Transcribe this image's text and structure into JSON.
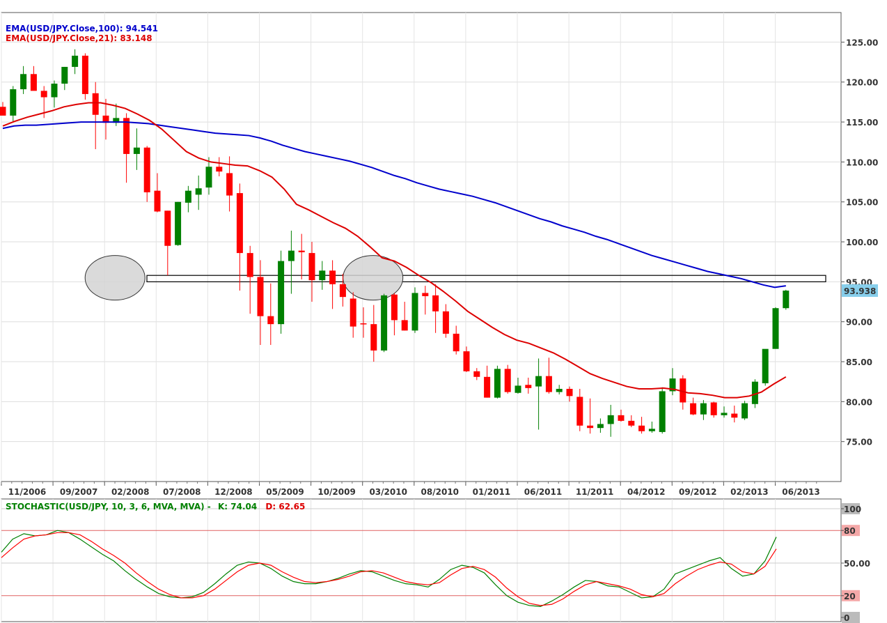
{
  "chart_data": [
    {
      "type": "candlestick",
      "instrument": "USD/JPY",
      "interval": "monthly",
      "ema_labels": [
        {
          "text": "EMA(USD/JPY.Close,100): 94.541",
          "color": "#0000cc"
        },
        {
          "text": "EMA(USD/JPY.Close,21): 83.148",
          "color": "#dd0000"
        }
      ],
      "last_price_label": "93.938",
      "x_tick_labels": [
        "11/2006",
        "09/2007",
        "02/2008",
        "07/2008",
        "12/2008",
        "05/2009",
        "10/2009",
        "03/2010",
        "08/2010",
        "01/2011",
        "06/2011",
        "11/2011",
        "04/2012",
        "09/2012",
        "02/2013",
        "06/2013"
      ],
      "y_tick_labels": [
        "125.00",
        "120.00",
        "115.00",
        "110.00",
        "105.00",
        "100.00",
        "95.00",
        "90.00",
        "85.00",
        "80.00",
        "75.00"
      ],
      "ylim": [
        70.0,
        128.7
      ],
      "grid": true,
      "resistance_zone": [
        95.0,
        95.8
      ],
      "highlight_ellipses": [
        {
          "at": "02/2008",
          "price": 95.5
        },
        {
          "at": "03/2010",
          "price": 95.5
        }
      ],
      "colors": {
        "up": "#008000",
        "down": "#ff0000",
        "ema100": "#0000cc",
        "ema21": "#dd0000",
        "last_price_bg": "#87ceeb"
      },
      "candles": [
        [
          116.9,
          117.5,
          115.9,
          115.8
        ],
        [
          115.8,
          119.5,
          115.0,
          119.1
        ],
        [
          119.1,
          122.0,
          118.5,
          121.0
        ],
        [
          121.0,
          122.0,
          119.0,
          118.9
        ],
        [
          118.9,
          119.5,
          115.5,
          118.1
        ],
        [
          118.1,
          120.2,
          116.8,
          119.8
        ],
        [
          119.8,
          121.9,
          119.0,
          121.9
        ],
        [
          121.9,
          124.1,
          121.0,
          123.3
        ],
        [
          123.3,
          123.6,
          117.8,
          118.5
        ],
        [
          118.6,
          120.0,
          111.6,
          115.9
        ],
        [
          115.8,
          117.9,
          112.8,
          114.9
        ],
        [
          114.9,
          117.3,
          114.5,
          115.5
        ],
        [
          115.5,
          116.1,
          107.4,
          111.0
        ],
        [
          111.0,
          114.2,
          109.0,
          111.8
        ],
        [
          111.8,
          112.0,
          105.0,
          106.2
        ],
        [
          106.4,
          108.6,
          103.7,
          103.8
        ],
        [
          103.9,
          103.9,
          95.8,
          99.5
        ],
        [
          99.6,
          105.0,
          99.5,
          105.0
        ],
        [
          104.9,
          107.0,
          103.7,
          106.4
        ],
        [
          105.9,
          108.3,
          104.0,
          106.7
        ],
        [
          106.8,
          110.6,
          105.9,
          109.4
        ],
        [
          109.4,
          110.6,
          108.2,
          108.8
        ],
        [
          108.6,
          110.7,
          103.8,
          105.8
        ],
        [
          106.1,
          107.3,
          93.9,
          98.6
        ],
        [
          98.6,
          99.5,
          91.0,
          95.6
        ],
        [
          95.6,
          97.7,
          87.1,
          90.7
        ],
        [
          90.7,
          94.8,
          87.1,
          89.7
        ],
        [
          89.7,
          98.9,
          88.5,
          97.6
        ],
        [
          97.6,
          101.4,
          93.5,
          98.9
        ],
        [
          98.9,
          101.0,
          95.3,
          98.7
        ],
        [
          98.6,
          100.0,
          92.5,
          95.2
        ],
        [
          95.2,
          97.6,
          94.0,
          96.4
        ],
        [
          96.4,
          97.7,
          91.6,
          94.7
        ],
        [
          94.7,
          96.0,
          91.9,
          93.1
        ],
        [
          92.9,
          93.7,
          88.0,
          89.4
        ],
        [
          89.8,
          91.8,
          88.0,
          89.7
        ],
        [
          89.7,
          92.1,
          85.0,
          86.4
        ],
        [
          86.4,
          93.5,
          86.2,
          93.3
        ],
        [
          93.4,
          93.6,
          88.3,
          90.2
        ],
        [
          90.2,
          92.5,
          88.9,
          88.9
        ],
        [
          88.9,
          94.3,
          88.6,
          93.6
        ],
        [
          93.6,
          94.5,
          90.9,
          93.2
        ],
        [
          93.3,
          94.7,
          88.6,
          91.3
        ],
        [
          91.3,
          92.2,
          88.0,
          88.5
        ],
        [
          88.5,
          89.5,
          85.9,
          86.3
        ],
        [
          86.3,
          86.9,
          83.7,
          83.8
        ],
        [
          83.8,
          84.2,
          82.7,
          83.1
        ],
        [
          83.1,
          84.5,
          80.5,
          80.5
        ],
        [
          80.5,
          84.5,
          80.4,
          84.1
        ],
        [
          84.1,
          84.6,
          81.0,
          81.2
        ],
        [
          81.1,
          83.0,
          81.0,
          82.0
        ],
        [
          82.1,
          83.0,
          81.0,
          81.7
        ],
        [
          81.9,
          85.4,
          76.5,
          83.2
        ],
        [
          83.2,
          85.5,
          81.0,
          81.2
        ],
        [
          81.2,
          82.1,
          80.9,
          81.6
        ],
        [
          81.6,
          81.9,
          80.0,
          80.7
        ],
        [
          80.6,
          81.6,
          76.3,
          77.0
        ],
        [
          77.0,
          80.4,
          76.0,
          76.7
        ],
        [
          76.7,
          77.9,
          76.1,
          77.2
        ],
        [
          77.2,
          79.6,
          75.6,
          78.3
        ],
        [
          78.3,
          79.0,
          77.5,
          77.6
        ],
        [
          77.6,
          78.3,
          76.8,
          77.0
        ],
        [
          77.0,
          78.1,
          76.0,
          76.3
        ],
        [
          76.3,
          77.5,
          76.1,
          76.6
        ],
        [
          76.2,
          81.8,
          76.0,
          81.3
        ],
        [
          81.3,
          84.2,
          80.8,
          82.9
        ],
        [
          82.9,
          83.3,
          79.0,
          79.9
        ],
        [
          79.8,
          80.5,
          78.3,
          78.4
        ],
        [
          78.4,
          80.2,
          77.7,
          79.8
        ],
        [
          79.9,
          80.0,
          78.0,
          78.3
        ],
        [
          78.3,
          79.4,
          78.0,
          78.6
        ],
        [
          78.5,
          79.5,
          77.4,
          78.0
        ],
        [
          77.9,
          80.1,
          77.7,
          79.8
        ],
        [
          79.7,
          82.8,
          79.2,
          82.5
        ],
        [
          82.3,
          86.5,
          82.0,
          86.6
        ],
        [
          86.6,
          91.8,
          86.6,
          91.7
        ],
        [
          91.7,
          94.0,
          91.5,
          93.9
        ]
      ],
      "ema100": [
        114.2,
        114.5,
        114.6,
        114.6,
        114.7,
        114.8,
        114.9,
        115.0,
        115.0,
        115.0,
        115.0,
        115.0,
        114.9,
        114.8,
        114.6,
        114.4,
        114.2,
        114.0,
        113.8,
        113.6,
        113.5,
        113.4,
        113.3,
        113.0,
        112.6,
        112.1,
        111.7,
        111.3,
        111.0,
        110.7,
        110.4,
        110.1,
        109.7,
        109.3,
        108.8,
        108.3,
        107.9,
        107.4,
        107.0,
        106.6,
        106.3,
        106.0,
        105.7,
        105.3,
        104.9,
        104.4,
        103.9,
        103.4,
        102.9,
        102.5,
        102.0,
        101.6,
        101.2,
        100.7,
        100.3,
        99.8,
        99.3,
        98.8,
        98.3,
        97.9,
        97.5,
        97.1,
        96.7,
        96.3,
        96.0,
        95.7,
        95.4,
        95.0,
        94.6,
        94.3,
        94.5
      ],
      "ema21": [
        114.5,
        115.1,
        115.6,
        116.0,
        116.4,
        116.9,
        117.2,
        117.4,
        117.4,
        117.1,
        116.7,
        116.0,
        115.2,
        114.1,
        112.7,
        111.3,
        110.5,
        110.0,
        109.8,
        109.6,
        109.5,
        108.9,
        108.1,
        106.6,
        104.7,
        104.0,
        103.2,
        102.4,
        101.7,
        100.7,
        99.4,
        98.0,
        97.6,
        96.8,
        95.8,
        94.9,
        93.8,
        92.6,
        91.3,
        90.3,
        89.3,
        88.4,
        87.7,
        87.3,
        86.7,
        86.1,
        85.3,
        84.4,
        83.5,
        82.9,
        82.4,
        81.9,
        81.6,
        81.6,
        81.7,
        81.5,
        81.1,
        81.0,
        80.8,
        80.5,
        80.5,
        80.7,
        81.2,
        82.2,
        83.1
      ],
      "ema100_label": "EMA(USD/JPY.Close,100): 94.541",
      "ema21_label": "EMA(USD/JPY.Close,21): 83.148"
    },
    {
      "type": "line",
      "title": "STOCHASTIC(USD/JPY, 10, 3, 6, MVA, MVA) -  K: 74.04  D: 62.65",
      "title_prefix": "STOCHASTIC(USD/JPY, 10, 3, 6, MVA, MVA) -",
      "k_text": "K: 74.04",
      "d_text": "D: 62.65",
      "ylim": [
        0,
        100
      ],
      "y_tick_labels": [
        "100",
        "80",
        "50.00",
        "20",
        "0"
      ],
      "reference_lines": [
        20,
        80
      ],
      "series": [
        {
          "name": "K",
          "color": "#008000",
          "values": [
            60,
            72,
            77,
            75,
            76,
            80,
            78,
            72,
            65,
            58,
            52,
            43,
            35,
            28,
            22,
            19,
            18,
            19,
            23,
            31,
            40,
            48,
            51,
            50,
            45,
            38,
            33,
            31,
            31,
            33,
            36,
            40,
            43,
            42,
            38,
            34,
            31,
            30,
            28,
            35,
            44,
            48,
            46,
            41,
            30,
            20,
            14,
            11,
            10,
            15,
            21,
            28,
            34,
            33,
            29,
            28,
            23,
            18,
            19,
            26,
            40,
            44,
            48,
            52,
            55,
            45,
            38,
            40,
            52,
            74
          ]
        },
        {
          "name": "D",
          "color": "#ff0000",
          "values": [
            55,
            64,
            72,
            75,
            76,
            78,
            78,
            76,
            70,
            63,
            57,
            50,
            41,
            33,
            26,
            21,
            18,
            18,
            20,
            26,
            34,
            42,
            48,
            50,
            48,
            42,
            37,
            33,
            32,
            33,
            35,
            38,
            42,
            43,
            41,
            37,
            33,
            31,
            30,
            32,
            39,
            45,
            47,
            44,
            37,
            27,
            19,
            13,
            11,
            12,
            17,
            24,
            30,
            33,
            31,
            29,
            26,
            21,
            19,
            22,
            31,
            38,
            44,
            48,
            51,
            49,
            42,
            40,
            47,
            63
          ]
        }
      ]
    }
  ]
}
